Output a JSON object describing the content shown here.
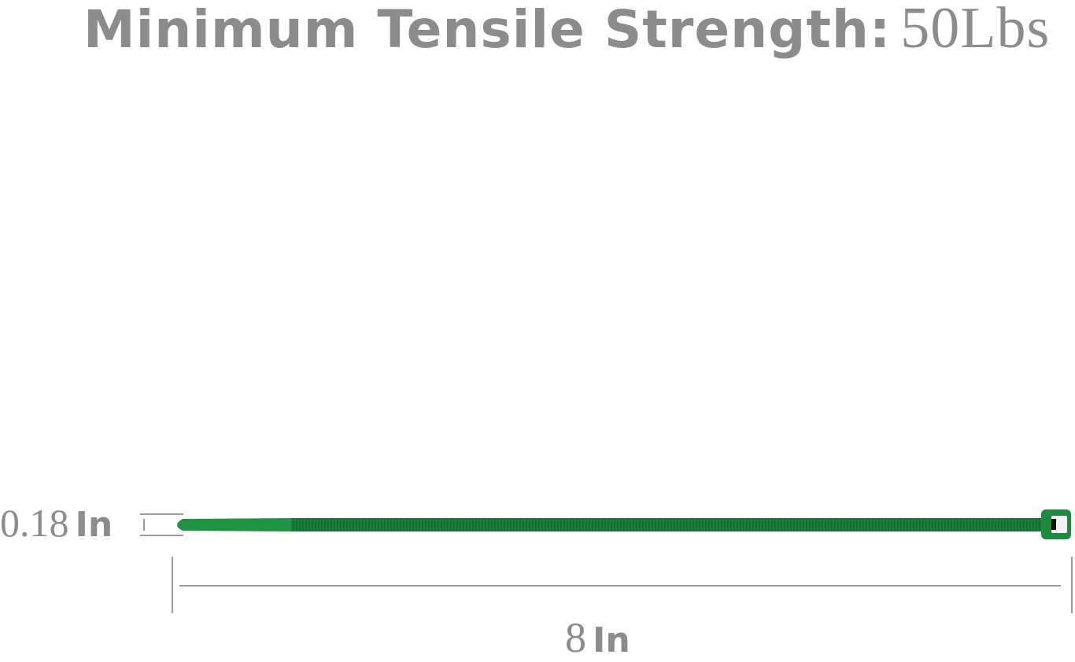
{
  "title": {
    "label": "Minimum Tensile Strength:",
    "value": "50Lbs"
  },
  "dimensions": {
    "thickness": {
      "number": "0.18",
      "unit": "In"
    },
    "length": {
      "number": "8",
      "unit": "In"
    }
  },
  "colors": {
    "tie": "#1e8a3e",
    "tie_dark": "#13702f",
    "text": "#8c8c8c",
    "lines": "#9a9a9a"
  }
}
